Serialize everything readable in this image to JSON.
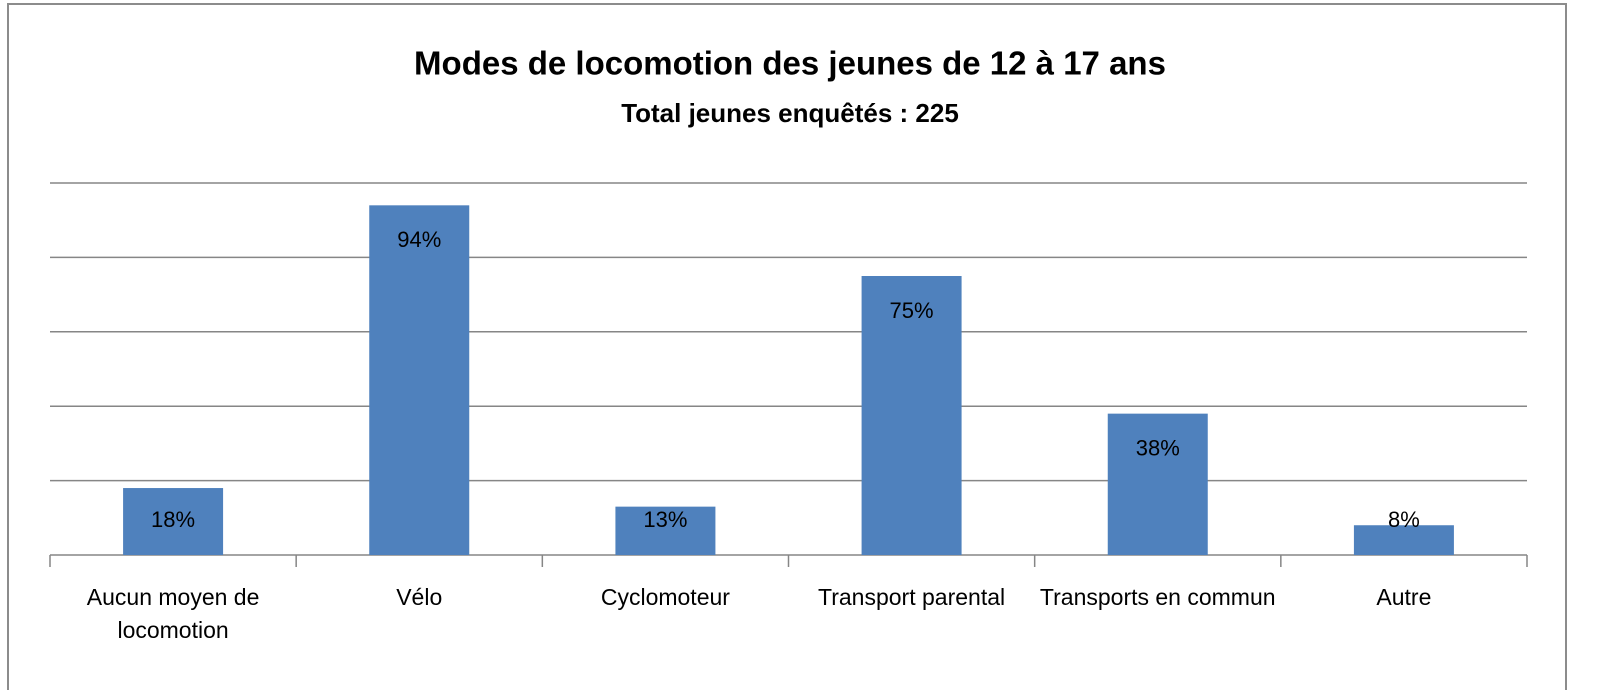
{
  "chart_data": {
    "type": "bar",
    "title": "Modes de locomotion des jeunes de 12 à 17 ans",
    "subtitle": "Total jeunes enquêtés : 225",
    "categories": [
      "Aucun moyen de locomotion",
      "Vélo",
      "Cyclomoteur",
      "Transport parental",
      "Transports en commun",
      "Autre"
    ],
    "values": [
      18,
      94,
      13,
      75,
      38,
      8
    ],
    "value_labels": [
      "18%",
      "94%",
      "13%",
      "75%",
      "38%",
      "8%"
    ],
    "color": "#4f81bd",
    "ylim": [
      0,
      100
    ],
    "yticks": [
      0,
      20,
      40,
      60,
      80,
      100
    ],
    "grid": true
  }
}
